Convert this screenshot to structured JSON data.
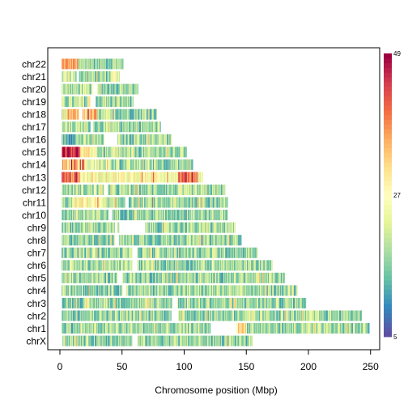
{
  "chart_data": {
    "type": "heatmap",
    "title": "",
    "xlabel": "Chromosome position (Mbp)",
    "ylabel": "",
    "xlim": [
      -10,
      255
    ],
    "x_ticks": [
      0,
      50,
      100,
      150,
      200,
      250
    ],
    "x_tick_labels": [
      "0",
      "50",
      "100",
      "150",
      "200",
      "250"
    ],
    "chromosomes": [
      {
        "name": "chr22",
        "length": 51,
        "gaps": [
          [
            0,
            1
          ]
        ],
        "hot": [
          [
            0,
            14,
            0.7
          ]
        ]
      },
      {
        "name": "chr21",
        "length": 48,
        "gaps": [
          [
            0,
            1
          ],
          [
            13,
            15
          ]
        ],
        "hot": [
          [
            0,
            12,
            0.4
          ],
          [
            40,
            48,
            0.45
          ]
        ]
      },
      {
        "name": "chr20",
        "length": 63,
        "gaps": [
          [
            0,
            1
          ],
          [
            26,
            30
          ]
        ],
        "hot": [
          [
            0,
            25,
            0.3
          ]
        ]
      },
      {
        "name": "chr19",
        "length": 59,
        "gaps": [
          [
            0,
            1
          ],
          [
            24,
            28
          ]
        ],
        "hot": []
      },
      {
        "name": "chr18",
        "length": 78,
        "gaps": [
          [
            0,
            1
          ],
          [
            15,
            18
          ]
        ],
        "hot": [
          [
            5,
            30,
            0.65
          ]
        ]
      },
      {
        "name": "chr17",
        "length": 81,
        "gaps": [
          [
            0,
            1
          ],
          [
            24,
            26
          ]
        ],
        "hot": [
          [
            0,
            30,
            0.3
          ]
        ]
      },
      {
        "name": "chr16",
        "length": 90,
        "gaps": [
          [
            0,
            1
          ],
          [
            35,
            46
          ]
        ],
        "hot": [
          [
            0,
            10,
            0.2
          ]
        ]
      },
      {
        "name": "chr15",
        "length": 102,
        "gaps": [
          [
            0,
            1
          ]
        ],
        "hot": [
          [
            0,
            16,
            0.95
          ],
          [
            16,
            30,
            0.5
          ]
        ]
      },
      {
        "name": "chr14",
        "length": 107,
        "gaps": [
          [
            0,
            1
          ]
        ],
        "hot": [
          [
            0,
            20,
            0.65
          ],
          [
            20,
            40,
            0.4
          ]
        ]
      },
      {
        "name": "chr13",
        "length": 115,
        "gaps": [
          [
            0,
            1
          ]
        ],
        "hot": [
          [
            0,
            15,
            0.8
          ],
          [
            15,
            115,
            0.5
          ],
          [
            95,
            110,
            0.8
          ]
        ]
      },
      {
        "name": "chr12",
        "length": 133,
        "gaps": [
          [
            0,
            1
          ],
          [
            35,
            38
          ]
        ],
        "hot": [
          [
            0,
            35,
            0.3
          ]
        ]
      },
      {
        "name": "chr11",
        "length": 135,
        "gaps": [
          [
            0,
            1
          ],
          [
            52,
            55
          ]
        ],
        "hot": [
          [
            10,
            35,
            0.5
          ]
        ]
      },
      {
        "name": "chr10",
        "length": 135,
        "gaps": [
          [
            0,
            1
          ],
          [
            39,
            42
          ]
        ],
        "hot": []
      },
      {
        "name": "chr9",
        "length": 141,
        "gaps": [
          [
            0,
            1
          ],
          [
            44,
            46
          ],
          [
            47,
            68
          ]
        ],
        "hot": [
          [
            60,
            68,
            0.4
          ]
        ]
      },
      {
        "name": "chr8",
        "length": 146,
        "gaps": [
          [
            0,
            1
          ],
          [
            44,
            47
          ]
        ],
        "hot": []
      },
      {
        "name": "chr7",
        "length": 159,
        "gaps": [
          [
            0,
            1
          ],
          [
            58,
            62
          ]
        ],
        "hot": []
      },
      {
        "name": "chr6",
        "length": 171,
        "gaps": [
          [
            0,
            1
          ],
          [
            58,
            62
          ]
        ],
        "hot": [
          [
            0,
            60,
            0.3
          ]
        ]
      },
      {
        "name": "chr5",
        "length": 181,
        "gaps": [
          [
            0,
            1
          ],
          [
            46,
            50
          ]
        ],
        "hot": []
      },
      {
        "name": "chr4",
        "length": 191,
        "gaps": [
          [
            0,
            1
          ],
          [
            50,
            53
          ]
        ],
        "hot": []
      },
      {
        "name": "chr3",
        "length": 198,
        "gaps": [
          [
            0,
            1
          ],
          [
            90,
            94
          ]
        ],
        "hot": []
      },
      {
        "name": "chr2",
        "length": 243,
        "gaps": [
          [
            0,
            1
          ],
          [
            89,
            95
          ]
        ],
        "hot": []
      },
      {
        "name": "chr1",
        "length": 249,
        "gaps": [
          [
            0,
            1
          ],
          [
            121,
            142
          ]
        ],
        "hot": [
          [
            135,
            150,
            0.6
          ]
        ]
      },
      {
        "name": "chrX",
        "length": 155,
        "gaps": [
          [
            0,
            2
          ],
          [
            58,
            62
          ]
        ],
        "hot": []
      }
    ],
    "color_scale": {
      "min": 5,
      "mid": 27,
      "max": 49,
      "tick_labels": [
        "5",
        "27",
        "49"
      ],
      "colors": [
        "#5e4fa2",
        "#3288bd",
        "#66c2a5",
        "#abdda4",
        "#e6f598",
        "#ffffbf",
        "#fee08b",
        "#fdae61",
        "#f46d43",
        "#d53e4f",
        "#9e0142"
      ]
    },
    "grid": false,
    "legend": "right"
  }
}
